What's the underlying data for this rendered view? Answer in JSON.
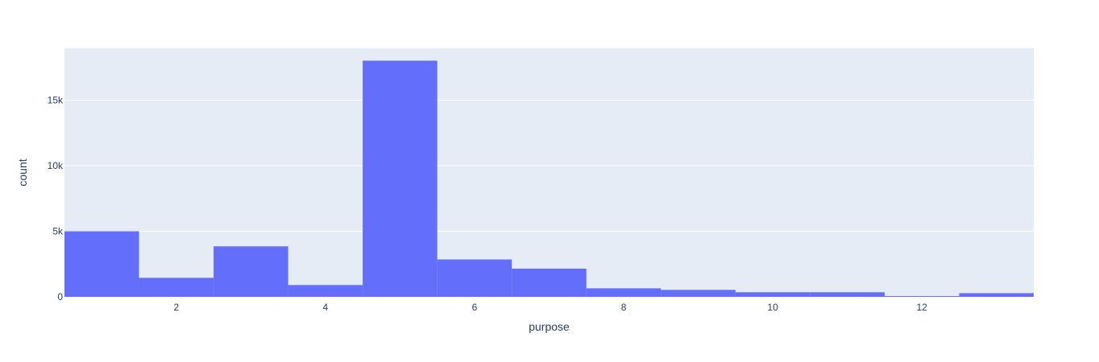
{
  "chart_data": {
    "type": "bar",
    "title": "",
    "xlabel": "purpose",
    "ylabel": "count",
    "bins": [
      {
        "x0": 0.5,
        "x1": 1.5,
        "count": 5000
      },
      {
        "x0": 1.5,
        "x1": 2.5,
        "count": 1450
      },
      {
        "x0": 2.5,
        "x1": 3.5,
        "count": 3850
      },
      {
        "x0": 3.5,
        "x1": 4.5,
        "count": 900
      },
      {
        "x0": 4.5,
        "x1": 5.5,
        "count": 18000
      },
      {
        "x0": 5.5,
        "x1": 6.5,
        "count": 2850
      },
      {
        "x0": 6.5,
        "x1": 7.5,
        "count": 2150
      },
      {
        "x0": 7.5,
        "x1": 8.5,
        "count": 650
      },
      {
        "x0": 8.5,
        "x1": 9.5,
        "count": 530
      },
      {
        "x0": 9.5,
        "x1": 10.5,
        "count": 350
      },
      {
        "x0": 10.5,
        "x1": 11.5,
        "count": 350
      },
      {
        "x0": 11.5,
        "x1": 12.5,
        "count": 60
      },
      {
        "x0": 12.5,
        "x1": 13.5,
        "count": 280
      }
    ],
    "xlim": [
      0.5,
      13.5
    ],
    "ylim": [
      0,
      18947
    ],
    "xticks": [
      2,
      4,
      6,
      8,
      10,
      12
    ],
    "xtick_labels": [
      "2",
      "4",
      "6",
      "8",
      "10",
      "12"
    ],
    "yticks": [
      0,
      5000,
      10000,
      15000
    ],
    "ytick_labels": [
      "0",
      "5k",
      "10k",
      "15k"
    ],
    "grid": true,
    "bar_color": "#636efa",
    "plot_bgcolor": "#e5ecf6",
    "gridcolor": "#ffffff",
    "text_color": "#2a3f5f"
  }
}
